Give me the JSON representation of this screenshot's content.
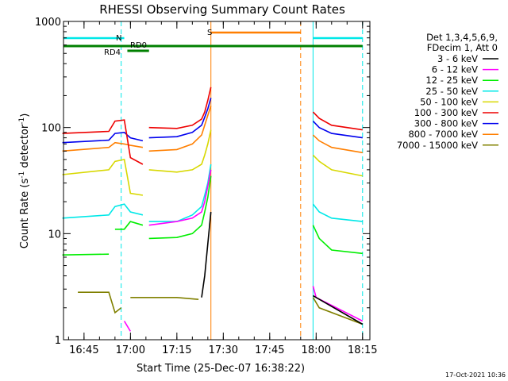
{
  "chart_data": {
    "type": "line",
    "title": "RHESSI Observing Summary Count Rates",
    "xlabel": "Start Time (25-Dec-07 16:38:22)",
    "ylabel_parts": [
      "Count Rate (s",
      "-1",
      " detector",
      "-1",
      ")"
    ],
    "yscale": "log",
    "ylim": [
      1,
      1000
    ],
    "xlim_minutes_after_16_38_22": [
      0,
      99
    ],
    "y_ticks": [
      {
        "value": 1,
        "label": "1"
      },
      {
        "value": 10,
        "label": "10"
      },
      {
        "value": 100,
        "label": "100"
      },
      {
        "value": 1000,
        "label": "1000"
      }
    ],
    "x_ticks": [
      {
        "time": "16:45",
        "label": "16:45"
      },
      {
        "time": "17:00",
        "label": "17:00"
      },
      {
        "time": "17:15",
        "label": "17:15"
      },
      {
        "time": "17:30",
        "label": "17:30"
      },
      {
        "time": "17:45",
        "label": "17:45"
      },
      {
        "time": "18:00",
        "label": "18:00"
      },
      {
        "time": "18:15",
        "label": "18:15"
      }
    ],
    "legend": {
      "placement": "top-right-outside",
      "header": [
        "Det 1,3,4,5,6,9,",
        "FDecim 1, Att 0"
      ],
      "entries": [
        {
          "label": "3 - 6 keV",
          "color": "#000000"
        },
        {
          "label": "6 - 12 keV",
          "color": "#ff00ff"
        },
        {
          "label": "12 - 25 keV",
          "color": "#00ee00"
        },
        {
          "label": "25 - 50 keV",
          "color": "#00e8e8"
        },
        {
          "label": "50 - 100 keV",
          "color": "#d8d800"
        },
        {
          "label": "100 - 300 keV",
          "color": "#ee0000"
        },
        {
          "label": "300 - 800 keV",
          "color": "#0000ee"
        },
        {
          "label": "800 - 7000 keV",
          "color": "#ff7f00"
        },
        {
          "label": "7000 - 15000 keV",
          "color": "#808000"
        }
      ]
    },
    "flags": [
      {
        "label": "N",
        "color": "#00e8e8",
        "segments": [
          [
            "16:38",
            "16:58"
          ],
          [
            "17:59",
            "18:15"
          ]
        ]
      },
      {
        "label": "S",
        "color": "#ff7f00",
        "segments": [
          [
            "17:26",
            "17:55"
          ]
        ]
      },
      {
        "label": "RD0",
        "color": "#008000",
        "segments": [
          [
            "16:59",
            "17:06"
          ]
        ]
      },
      {
        "label": "RD4",
        "color": "#008000",
        "segments": [
          [
            "16:38",
            "18:15"
          ]
        ]
      }
    ],
    "events": [
      {
        "time": "16:57",
        "color": "#00e8e8",
        "style": "dashed"
      },
      {
        "time": "17:26",
        "color": "#ff7f00",
        "style": "solid"
      },
      {
        "time": "17:55",
        "color": "#ff7f00",
        "style": "dashed"
      },
      {
        "time": "17:59",
        "color": "#00e8e8",
        "style": "solid"
      },
      {
        "time": "18:15",
        "color": "#00e8e8",
        "style": "dashed"
      }
    ],
    "series": [
      {
        "name": "3 - 6 keV",
        "color": "#000000",
        "segments": [
          [
            [
              "17:23",
              2.5
            ],
            [
              "17:24",
              4
            ],
            [
              "17:25",
              8
            ],
            [
              "17:26",
              16
            ]
          ],
          [
            [
              "17:59",
              2.6
            ],
            [
              "18:00",
              2.5
            ],
            [
              "18:15",
              1.4
            ]
          ]
        ]
      },
      {
        "name": "6 - 12 keV",
        "color": "#ff00ff",
        "segments": [
          [
            [
              "16:58",
              1.5
            ],
            [
              "17:00",
              1.2
            ]
          ],
          [
            [
              "17:06",
              12
            ],
            [
              "17:15",
              13
            ],
            [
              "17:20",
              14
            ],
            [
              "17:23",
              16
            ],
            [
              "17:24",
              20
            ],
            [
              "17:25",
              28
            ],
            [
              "17:26",
              40
            ]
          ],
          [
            [
              "17:59",
              3.2
            ],
            [
              "18:00",
              2.5
            ],
            [
              "18:15",
              1.5
            ]
          ]
        ]
      },
      {
        "name": "12 - 25 keV",
        "color": "#00ee00",
        "segments": [
          [
            [
              "16:38",
              6.3
            ],
            [
              "16:53",
              6.4
            ]
          ],
          [
            [
              "16:55",
              11
            ],
            [
              "16:58",
              11
            ],
            [
              "17:00",
              13
            ],
            [
              "17:04",
              12
            ]
          ],
          [
            [
              "17:06",
              9
            ],
            [
              "17:15",
              9.2
            ],
            [
              "17:20",
              10
            ],
            [
              "17:23",
              12
            ],
            [
              "17:24",
              16
            ],
            [
              "17:25",
              22
            ],
            [
              "17:26",
              35
            ]
          ],
          [
            [
              "17:59",
              12
            ],
            [
              "18:01",
              9
            ],
            [
              "18:05",
              7
            ],
            [
              "18:15",
              6.5
            ]
          ]
        ]
      },
      {
        "name": "25 - 50 keV",
        "color": "#00e8e8",
        "segments": [
          [
            [
              "16:38",
              14
            ],
            [
              "16:53",
              15
            ],
            [
              "16:55",
              18
            ],
            [
              "16:58",
              19
            ],
            [
              "17:00",
              16
            ],
            [
              "17:04",
              15
            ]
          ],
          [
            [
              "17:06",
              13
            ],
            [
              "17:15",
              13
            ],
            [
              "17:20",
              15
            ],
            [
              "17:23",
              18
            ],
            [
              "17:24",
              23
            ],
            [
              "17:25",
              30
            ],
            [
              "17:26",
              45
            ]
          ],
          [
            [
              "17:59",
              19
            ],
            [
              "18:01",
              16
            ],
            [
              "18:05",
              14
            ],
            [
              "18:15",
              13
            ]
          ]
        ]
      },
      {
        "name": "50 - 100 keV",
        "color": "#d8d800",
        "segments": [
          [
            [
              "16:38",
              36
            ],
            [
              "16:53",
              40
            ],
            [
              "16:55",
              48
            ],
            [
              "16:58",
              50
            ],
            [
              "17:00",
              24
            ],
            [
              "17:04",
              23
            ]
          ],
          [
            [
              "17:06",
              40
            ],
            [
              "17:15",
              38
            ],
            [
              "17:20",
              40
            ],
            [
              "17:23",
              45
            ],
            [
              "17:24",
              55
            ],
            [
              "17:25",
              70
            ],
            [
              "17:26",
              95
            ]
          ],
          [
            [
              "17:59",
              55
            ],
            [
              "18:01",
              48
            ],
            [
              "18:05",
              40
            ],
            [
              "18:15",
              35
            ]
          ]
        ]
      },
      {
        "name": "100 - 300 keV",
        "color": "#ee0000",
        "segments": [
          [
            [
              "16:38",
              88
            ],
            [
              "16:53",
              92
            ],
            [
              "16:55",
              115
            ],
            [
              "16:58",
              118
            ],
            [
              "17:00",
              52
            ],
            [
              "17:04",
              45
            ]
          ],
          [
            [
              "17:06",
              100
            ],
            [
              "17:15",
              98
            ],
            [
              "17:20",
              105
            ],
            [
              "17:23",
              120
            ],
            [
              "17:24",
              140
            ],
            [
              "17:25",
              180
            ],
            [
              "17:26",
              240
            ]
          ],
          [
            [
              "17:59",
              140
            ],
            [
              "18:01",
              122
            ],
            [
              "18:05",
              105
            ],
            [
              "18:15",
              95
            ]
          ]
        ]
      },
      {
        "name": "300 - 800 keV",
        "color": "#0000ee",
        "segments": [
          [
            [
              "16:38",
              72
            ],
            [
              "16:53",
              76
            ],
            [
              "16:55",
              88
            ],
            [
              "16:58",
              90
            ],
            [
              "17:00",
              80
            ],
            [
              "17:04",
              75
            ]
          ],
          [
            [
              "17:06",
              80
            ],
            [
              "17:15",
              82
            ],
            [
              "17:20",
              90
            ],
            [
              "17:23",
              105
            ],
            [
              "17:24",
              125
            ],
            [
              "17:25",
              150
            ],
            [
              "17:26",
              190
            ]
          ],
          [
            [
              "17:59",
              115
            ],
            [
              "18:01",
              100
            ],
            [
              "18:05",
              88
            ],
            [
              "18:15",
              80
            ]
          ]
        ]
      },
      {
        "name": "800 - 7000 keV",
        "color": "#ff7f00",
        "segments": [
          [
            [
              "16:38",
              60
            ],
            [
              "16:53",
              65
            ],
            [
              "16:55",
              72
            ],
            [
              "16:58",
              70
            ],
            [
              "17:00",
              68
            ],
            [
              "17:04",
              65
            ]
          ],
          [
            [
              "17:06",
              60
            ],
            [
              "17:15",
              62
            ],
            [
              "17:20",
              70
            ],
            [
              "17:23",
              85
            ],
            [
              "17:24",
              105
            ],
            [
              "17:25",
              130
            ],
            [
              "17:26",
              160
            ]
          ],
          [
            [
              "17:59",
              85
            ],
            [
              "18:01",
              75
            ],
            [
              "18:05",
              65
            ],
            [
              "18:15",
              58
            ]
          ]
        ]
      },
      {
        "name": "7000 - 15000 keV",
        "color": "#808000",
        "segments": [
          [
            [
              "16:43",
              2.8
            ],
            [
              "16:53",
              2.8
            ],
            [
              "16:55",
              1.8
            ],
            [
              "16:57",
              2.0
            ]
          ],
          [
            [
              "17:00",
              2.5
            ],
            [
              "17:15",
              2.5
            ],
            [
              "17:22",
              2.4
            ]
          ],
          [
            [
              "17:59",
              2.5
            ],
            [
              "18:01",
              2.0
            ],
            [
              "18:15",
              1.4
            ]
          ]
        ]
      }
    ]
  },
  "footer": {
    "date_stamp": "17-Oct-2021 10:36"
  }
}
